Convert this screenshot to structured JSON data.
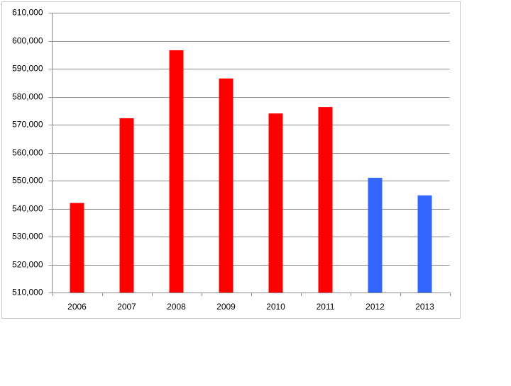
{
  "chart_data": {
    "type": "bar",
    "categories": [
      "2006",
      "2007",
      "2008",
      "2009",
      "2010",
      "2011",
      "2012",
      "2013"
    ],
    "values": [
      542000,
      572300,
      596600,
      586500,
      574000,
      576300,
      551000,
      544700
    ],
    "colors": [
      "#ff0000",
      "#ff0000",
      "#ff0000",
      "#ff0000",
      "#ff0000",
      "#ff0000",
      "#3366ff",
      "#3366ff"
    ],
    "ylim": [
      510000,
      610000
    ],
    "yticks": [
      {
        "value": 510000,
        "label": "510,000"
      },
      {
        "value": 520000,
        "label": "520,000"
      },
      {
        "value": 530000,
        "label": "530,000"
      },
      {
        "value": 540000,
        "label": "540,000"
      },
      {
        "value": 550000,
        "label": "550,000"
      },
      {
        "value": 560000,
        "label": "560,000"
      },
      {
        "value": 570000,
        "label": "570,000"
      },
      {
        "value": 580000,
        "label": "580,000"
      },
      {
        "value": 590000,
        "label": "590,000"
      },
      {
        "value": 600000,
        "label": "600,000"
      },
      {
        "value": 610000,
        "label": "610,000"
      }
    ],
    "grid": true
  }
}
